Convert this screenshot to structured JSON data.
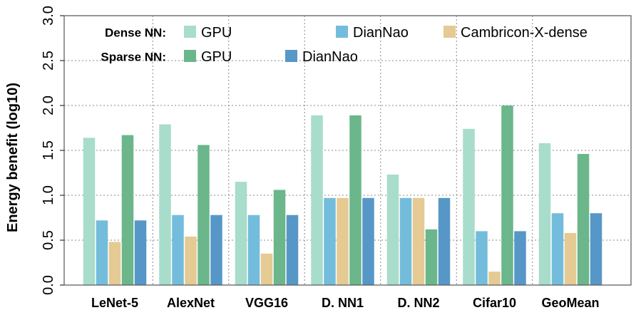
{
  "chart_data": {
    "type": "bar",
    "title": "",
    "ylabel": "Energy benefit (log10)",
    "xlabel": "",
    "ylim": [
      0,
      3.0
    ],
    "yticks": [
      "0.0",
      "0.5",
      "1.0",
      "1.5",
      "2.0",
      "2.5",
      "3.0"
    ],
    "grid": "dotted horizontal and vertical",
    "legend_placement": "top-left",
    "categories": [
      "LeNet-5",
      "AlexNet",
      "VGG16",
      "D. NN1",
      "D. NN2",
      "Cifar10",
      "GeoMean"
    ],
    "legend": {
      "groups": [
        {
          "label": "Dense NN:",
          "entries": [
            {
              "series": 0,
              "label": "GPU"
            },
            {
              "series": 1,
              "label": "DianNao"
            },
            {
              "series": 2,
              "label": "Cambricon-X-dense"
            }
          ]
        },
        {
          "label": "Sparse NN:",
          "entries": [
            {
              "series": 3,
              "label": "GPU"
            },
            {
              "series": 4,
              "label": "DianNao"
            }
          ]
        }
      ]
    },
    "series": [
      {
        "name": "Dense NN: GPU",
        "color": "#a8dccb",
        "values": [
          1.64,
          1.79,
          1.15,
          1.89,
          1.23,
          1.74,
          1.58
        ]
      },
      {
        "name": "Dense NN: DianNao",
        "color": "#74bcdc",
        "values": [
          0.72,
          0.78,
          0.78,
          0.97,
          0.97,
          0.6,
          0.8
        ]
      },
      {
        "name": "Dense NN: Cambricon-X-dense",
        "color": "#e5ca93",
        "values": [
          0.48,
          0.54,
          0.35,
          0.97,
          0.97,
          0.15,
          0.58
        ]
      },
      {
        "name": "Sparse NN: GPU",
        "color": "#6bb68a",
        "values": [
          1.67,
          1.56,
          1.06,
          1.89,
          0.62,
          2.0,
          1.46
        ]
      },
      {
        "name": "Sparse NN: DianNao",
        "color": "#5797c7",
        "values": [
          0.72,
          0.78,
          0.78,
          0.97,
          0.97,
          0.6,
          0.8
        ]
      }
    ]
  }
}
